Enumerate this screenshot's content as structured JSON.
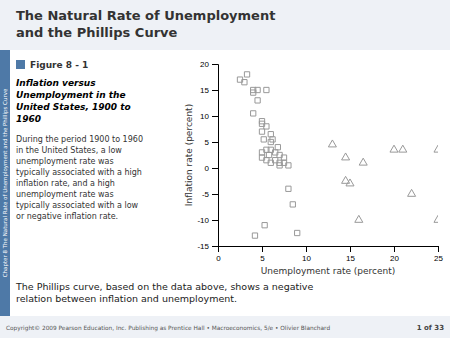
{
  "chart_data": {
    "type": "scatter",
    "title": "The Natural Rate of Unemployment\nand the Phillips Curve",
    "xlabel": "Unemployment rate (percent)",
    "ylabel": "Inflation rate (percent)",
    "annotations": [
      "Figure 8 - 1",
      "Inflation versus\nUnemployment in the\nUnited States, 1900 to\n1960",
      "During the period 1900 to 1960\nin the United States, a low\nunemployment rate was\ntypically associated with a high\ninflation rate, and a high\nunemployment rate was\ntypically associated with a low\nor negative inflation rate.",
      "The Phillips curve, based on the data above, shows a negative\nrelation between inflation and unemployment.",
      "Copyright© 2009 Pearson Education, Inc. Publishing as Prentice Hall  •  Macroeconomics, 5/e  •  Olivier Blanchard",
      "1 of 33",
      "Chapter 8   The Natural Rate of Unemployment and the Phillips Curve"
    ],
    "xlim": [
      0,
      25
    ],
    "ylim": [
      -15,
      20
    ],
    "xticks": [
      0,
      5,
      10,
      15,
      20,
      25
    ],
    "yticks": [
      -15,
      -10,
      -5,
      0,
      5,
      10,
      15,
      20
    ],
    "grid": false,
    "series": [
      {
        "marker": "square",
        "color": "#999999",
        "x": [
          2.5,
          3.0,
          3.3,
          4.0,
          4.0,
          4.0,
          4.5,
          4.5,
          5.0,
          5.0,
          5.0,
          5.0,
          5.0,
          5.2,
          5.5,
          5.5,
          5.5,
          5.5,
          5.8,
          6.0,
          6.0,
          6.0,
          6.0,
          6.2,
          6.5,
          6.5,
          6.8,
          7.0,
          7.0,
          7.0,
          7.5,
          7.5,
          8.0,
          8.0,
          8.5,
          4.2,
          5.3,
          9.0
        ],
        "values": [
          17.0,
          16.5,
          18.0,
          15.0,
          14.5,
          10.5,
          15.0,
          13.0,
          8.5,
          9.0,
          7.0,
          3.0,
          2.0,
          5.5,
          8.0,
          3.5,
          1.5,
          15.0,
          2.5,
          6.5,
          5.0,
          3.5,
          1.0,
          5.5,
          3.0,
          1.5,
          4.0,
          2.5,
          1.0,
          0.5,
          2.0,
          1.0,
          -4.0,
          0.5,
          -7.0,
          -13.0,
          -11.0,
          -12.5
        ]
      },
      {
        "marker": "triangle",
        "color": "#999999",
        "x": [
          13.0,
          14.5,
          14.5,
          15.0,
          16.0,
          16.5,
          20.0,
          21.0,
          22.0,
          25.0,
          25.0
        ],
        "values": [
          4.5,
          2.0,
          -2.5,
          -3.0,
          -10.0,
          1.0,
          3.5,
          3.5,
          -5.0,
          -10.0,
          3.5
        ]
      }
    ]
  }
}
